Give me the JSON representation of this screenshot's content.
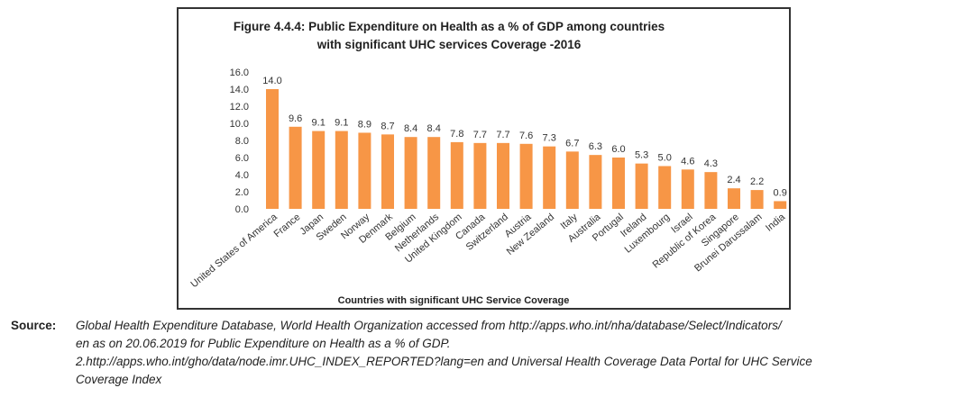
{
  "chart_data": {
    "type": "bar",
    "title_line1": "Figure 4.4.4:  Public Expenditure on Health as a % of GDP among countries",
    "title_line2": "with significant UHC services Coverage -2016",
    "xlabel": "Countries with significant  UHC Service Coverage",
    "ylabel": "",
    "ylim": [
      0,
      16
    ],
    "yticks": [
      "0.0",
      "2.0",
      "4.0",
      "6.0",
      "8.0",
      "10.0",
      "12.0",
      "14.0",
      "16.0"
    ],
    "categories": [
      "United States of America",
      "France",
      "Japan",
      "Sweden",
      "Norway",
      "Denmark",
      "Belgium",
      "Netherlands",
      "United Kingdom",
      "Canada",
      "Switzerland",
      "Austria",
      "New Zealand",
      "Italy",
      "Australia",
      "Portugal",
      "Ireland",
      "Luxembourg",
      "Israel",
      "Republic of Korea",
      "Singapore",
      "Brunei Darussalam",
      "India"
    ],
    "values": [
      14.0,
      9.6,
      9.1,
      9.1,
      8.9,
      8.7,
      8.4,
      8.4,
      7.8,
      7.7,
      7.7,
      7.6,
      7.3,
      6.7,
      6.3,
      6.0,
      5.3,
      5.0,
      4.6,
      4.3,
      2.4,
      2.2,
      0.9
    ],
    "bar_color": "#F79646",
    "grid": false,
    "legend": "none"
  },
  "source": {
    "label": "Source:",
    "text": "Global Health Expenditure Database, World Health Organization accessed from http://apps.who.int/nha/database/Select/Indicators/\nen as on 20.06.2019 for Public Expenditure on Health as a % of GDP.\n2.http://apps.who.int/gho/data/node.imr.UHC_INDEX_REPORTED?lang=en and Universal Health Coverage Data Portal for UHC Service\nCoverage Index"
  }
}
